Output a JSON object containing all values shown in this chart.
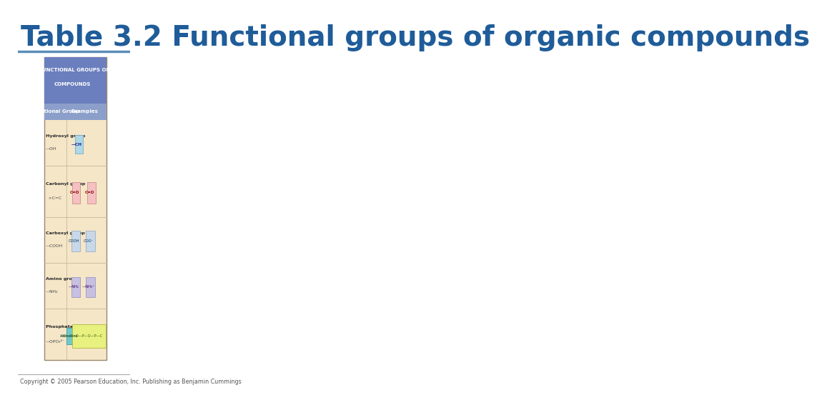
{
  "title": "Table 3.2 Functional groups of organic compounds",
  "title_color": "#1F5C99",
  "title_fontsize": 28,
  "title_fontstyle": "bold",
  "bg_color": "#FFFFFF",
  "header_line_color": "#5B8DB8",
  "copyright_text": "Copyright © 2005 Pearson Education, Inc. Publishing as Benjamin Cummings",
  "table_bg_color": "#F5E6C8",
  "header_bg_color": "#6B7FBE",
  "subheader_bg_color": "#8B9FCA",
  "divider_color": "#C8B89A",
  "outer_border_color": "#9A8870"
}
